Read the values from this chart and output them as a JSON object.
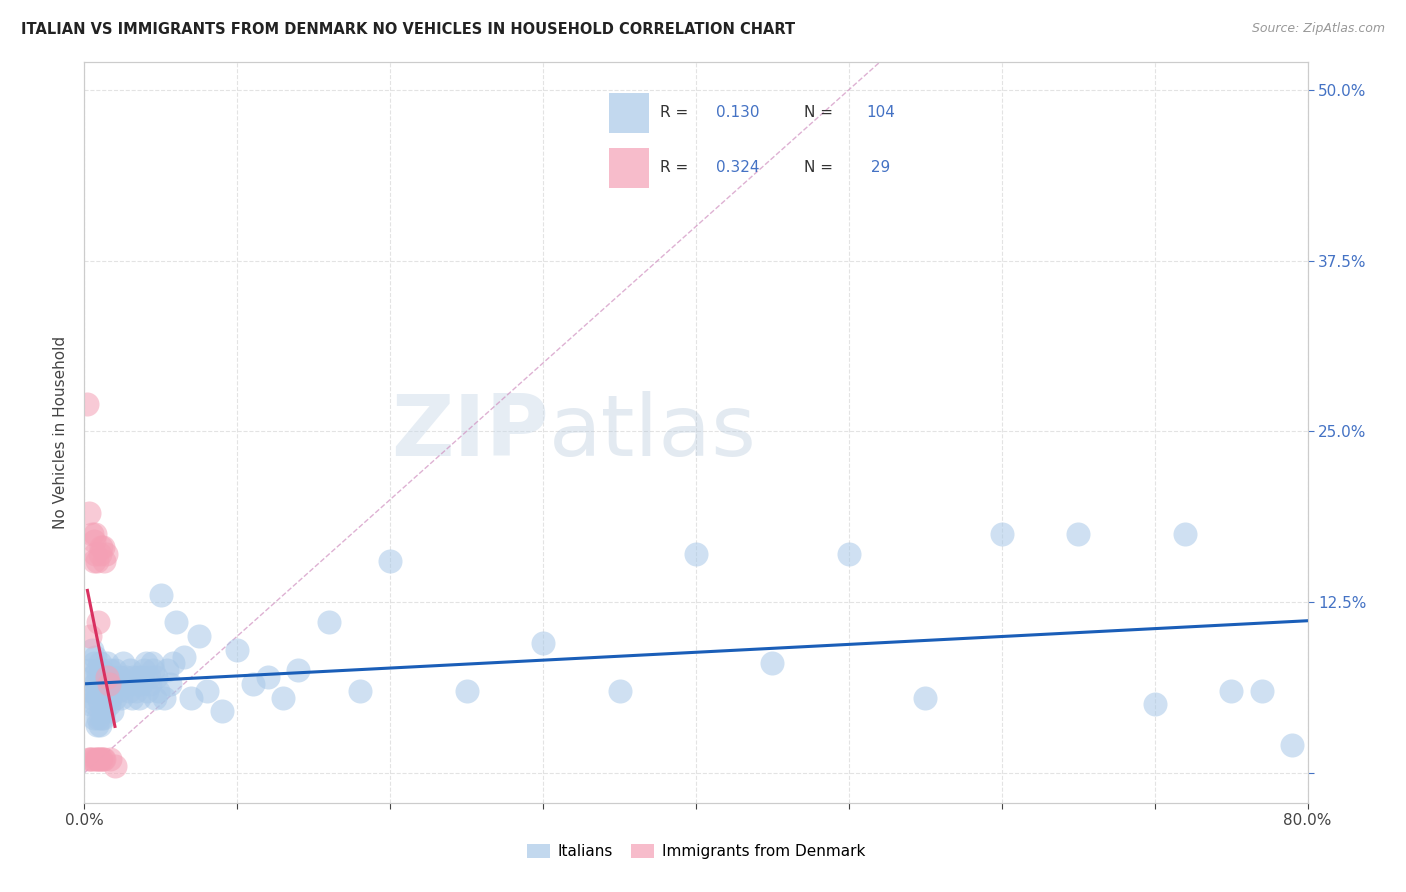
{
  "title": "ITALIAN VS IMMIGRANTS FROM DENMARK NO VEHICLES IN HOUSEHOLD CORRELATION CHART",
  "source": "Source: ZipAtlas.com",
  "ylabel": "No Vehicles in Household",
  "xlim": [
    0.0,
    0.8
  ],
  "ylim": [
    -0.022,
    0.52
  ],
  "yticks": [
    0.0,
    0.125,
    0.25,
    0.375,
    0.5
  ],
  "ytick_labels": [
    "",
    "12.5%",
    "25.0%",
    "37.5%",
    "50.0%"
  ],
  "xticks": [
    0.0,
    0.1,
    0.2,
    0.3,
    0.4,
    0.5,
    0.6,
    0.7,
    0.8
  ],
  "xtick_labels": [
    "0.0%",
    "",
    "",
    "",
    "",
    "",
    "",
    "",
    "80.0%"
  ],
  "blue_color": "#a8c8e8",
  "pink_color": "#f4a0b5",
  "trend_blue": "#1a5eb8",
  "trend_pink": "#d93060",
  "dashed_color": "#c8b8c8",
  "italians_x": [
    0.003,
    0.004,
    0.004,
    0.005,
    0.005,
    0.005,
    0.006,
    0.006,
    0.006,
    0.007,
    0.007,
    0.007,
    0.008,
    0.008,
    0.008,
    0.009,
    0.009,
    0.009,
    0.01,
    0.01,
    0.01,
    0.01,
    0.011,
    0.011,
    0.011,
    0.012,
    0.012,
    0.012,
    0.013,
    0.013,
    0.014,
    0.014,
    0.015,
    0.015,
    0.016,
    0.016,
    0.017,
    0.017,
    0.018,
    0.018,
    0.019,
    0.02,
    0.02,
    0.021,
    0.022,
    0.023,
    0.024,
    0.025,
    0.026,
    0.027,
    0.028,
    0.029,
    0.03,
    0.031,
    0.032,
    0.033,
    0.034,
    0.035,
    0.036,
    0.037,
    0.038,
    0.039,
    0.04,
    0.041,
    0.042,
    0.043,
    0.044,
    0.045,
    0.046,
    0.047,
    0.048,
    0.05,
    0.052,
    0.054,
    0.056,
    0.058,
    0.06,
    0.065,
    0.07,
    0.075,
    0.08,
    0.09,
    0.1,
    0.11,
    0.12,
    0.13,
    0.14,
    0.16,
    0.18,
    0.2,
    0.25,
    0.3,
    0.35,
    0.4,
    0.45,
    0.5,
    0.55,
    0.6,
    0.65,
    0.7,
    0.72,
    0.75,
    0.77,
    0.79
  ],
  "italians_y": [
    0.075,
    0.06,
    0.05,
    0.09,
    0.07,
    0.055,
    0.08,
    0.06,
    0.04,
    0.085,
    0.065,
    0.05,
    0.075,
    0.06,
    0.035,
    0.07,
    0.055,
    0.04,
    0.08,
    0.065,
    0.05,
    0.035,
    0.075,
    0.06,
    0.04,
    0.07,
    0.055,
    0.04,
    0.065,
    0.045,
    0.07,
    0.055,
    0.08,
    0.06,
    0.07,
    0.05,
    0.075,
    0.055,
    0.065,
    0.045,
    0.07,
    0.075,
    0.055,
    0.065,
    0.06,
    0.07,
    0.055,
    0.08,
    0.065,
    0.07,
    0.065,
    0.06,
    0.075,
    0.055,
    0.07,
    0.065,
    0.06,
    0.07,
    0.055,
    0.065,
    0.07,
    0.075,
    0.08,
    0.06,
    0.07,
    0.065,
    0.08,
    0.075,
    0.055,
    0.07,
    0.06,
    0.13,
    0.055,
    0.075,
    0.065,
    0.08,
    0.11,
    0.085,
    0.055,
    0.1,
    0.06,
    0.045,
    0.09,
    0.065,
    0.07,
    0.055,
    0.075,
    0.11,
    0.06,
    0.155,
    0.06,
    0.095,
    0.06,
    0.16,
    0.08,
    0.16,
    0.055,
    0.175,
    0.175,
    0.05,
    0.175,
    0.06,
    0.06,
    0.02
  ],
  "denmark_x": [
    0.002,
    0.003,
    0.003,
    0.004,
    0.004,
    0.005,
    0.005,
    0.006,
    0.006,
    0.007,
    0.007,
    0.007,
    0.008,
    0.008,
    0.009,
    0.009,
    0.01,
    0.01,
    0.011,
    0.011,
    0.012,
    0.012,
    0.013,
    0.013,
    0.014,
    0.015,
    0.016,
    0.017,
    0.02
  ],
  "denmark_y": [
    0.27,
    0.01,
    0.19,
    0.01,
    0.1,
    0.175,
    0.01,
    0.155,
    0.17,
    0.16,
    0.01,
    0.175,
    0.155,
    0.01,
    0.11,
    0.01,
    0.16,
    0.01,
    0.165,
    0.01,
    0.165,
    0.01,
    0.155,
    0.01,
    0.16,
    0.07,
    0.065,
    0.01,
    0.005
  ]
}
